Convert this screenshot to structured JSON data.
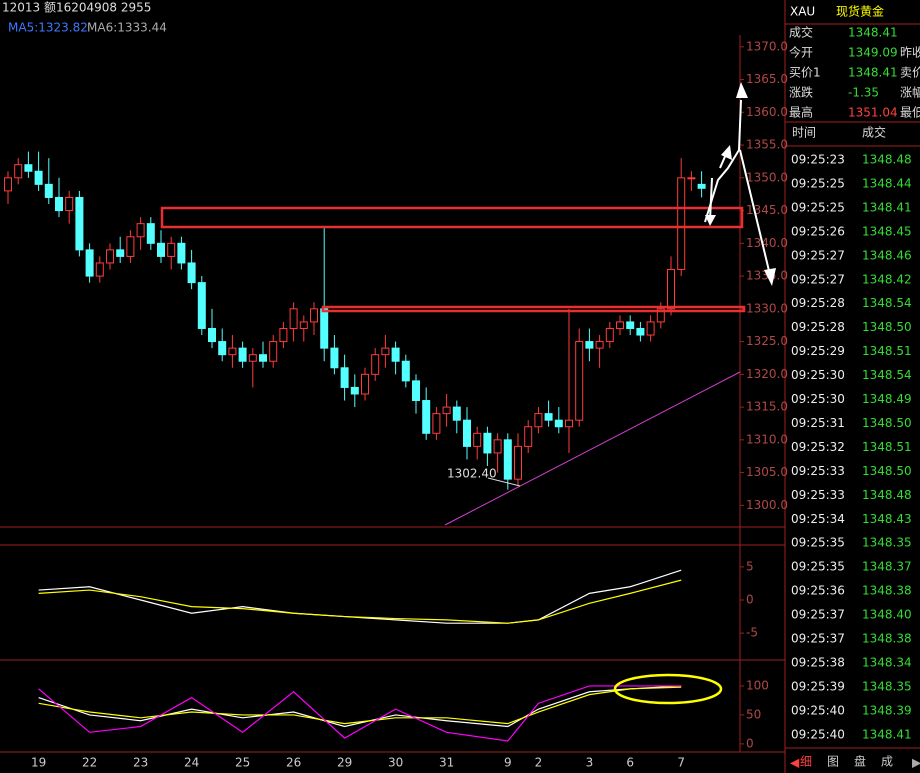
{
  "header": {
    "info": "12013 额16204908 2955",
    "ma5": "MA5:1323.82",
    "ma6": "MA6:1333.44"
  },
  "chart_data": [
    {
      "type": "candlestick",
      "up_color": "#ff3c3c",
      "down_color": "#54ffff",
      "categories": [
        null,
        null,
        null,
        "19",
        null,
        null,
        null,
        null,
        "22",
        null,
        null,
        null,
        null,
        "23",
        null,
        null,
        null,
        null,
        "24",
        null,
        null,
        null,
        null,
        "25",
        null,
        null,
        null,
        null,
        "26",
        null,
        null,
        null,
        null,
        "29",
        null,
        null,
        null,
        null,
        "30",
        null,
        null,
        null,
        null,
        "31",
        null,
        null,
        null,
        null,
        null,
        "9",
        null,
        null,
        "2",
        null,
        null,
        null,
        null,
        "3",
        null,
        null,
        null,
        "6",
        null,
        null,
        null,
        null,
        "7",
        null,
        null
      ],
      "values": [
        [
          1348,
          1351,
          1346,
          1350
        ],
        [
          1350,
          1353,
          1349,
          1352
        ],
        [
          1352,
          1354,
          1350,
          1351
        ],
        [
          1351,
          1354,
          1348,
          1349
        ],
        [
          1349,
          1353,
          1346,
          1347
        ],
        [
          1347,
          1350,
          1344,
          1345
        ],
        [
          1345,
          1348,
          1343,
          1347
        ],
        [
          1347,
          1348,
          1338,
          1339
        ],
        [
          1339,
          1340,
          1334,
          1335
        ],
        [
          1335,
          1338,
          1334,
          1337
        ],
        [
          1337,
          1340,
          1336,
          1339
        ],
        [
          1339,
          1341,
          1337,
          1338
        ],
        [
          1338,
          1342,
          1337,
          1341
        ],
        [
          1341,
          1344,
          1339,
          1343
        ],
        [
          1343,
          1344,
          1339,
          1340
        ],
        [
          1340,
          1342,
          1337,
          1338
        ],
        [
          1338,
          1341,
          1336,
          1340
        ],
        [
          1340,
          1341,
          1336,
          1337
        ],
        [
          1337,
          1339,
          1333,
          1334
        ],
        [
          1334,
          1335,
          1326,
          1327
        ],
        [
          1327,
          1330,
          1324,
          1325
        ],
        [
          1325,
          1327,
          1322,
          1323
        ],
        [
          1323,
          1326,
          1321,
          1324
        ],
        [
          1324,
          1325,
          1321,
          1322
        ],
        [
          1322,
          1324,
          1318,
          1323
        ],
        [
          1323,
          1325,
          1321,
          1322
        ],
        [
          1322,
          1326,
          1321,
          1325
        ],
        [
          1325,
          1328,
          1324,
          1327
        ],
        [
          1327,
          1331,
          1325,
          1330
        ],
        [
          1327,
          1329,
          1325,
          1328
        ],
        [
          1328,
          1331,
          1326,
          1330
        ],
        [
          1330,
          1342.3,
          1322,
          1324
        ],
        [
          1324,
          1326,
          1320,
          1321
        ],
        [
          1321,
          1323,
          1316,
          1318
        ],
        [
          1318,
          1320,
          1315,
          1317
        ],
        [
          1317,
          1321,
          1316,
          1320
        ],
        [
          1320,
          1324,
          1319,
          1323
        ],
        [
          1323,
          1326,
          1321,
          1324
        ],
        [
          1324,
          1325,
          1320,
          1322
        ],
        [
          1322,
          1323,
          1318,
          1319
        ],
        [
          1319,
          1320,
          1314,
          1316
        ],
        [
          1316,
          1318,
          1310,
          1311
        ],
        [
          1311,
          1315,
          1310,
          1314
        ],
        [
          1314,
          1317,
          1312,
          1315
        ],
        [
          1315,
          1316,
          1311,
          1313
        ],
        [
          1313,
          1315,
          1307,
          1309
        ],
        [
          1309,
          1312,
          1307,
          1311
        ],
        [
          1311,
          1312,
          1306,
          1308
        ],
        [
          1308,
          1311,
          1305,
          1310
        ],
        [
          1310,
          1311,
          1302.4,
          1304
        ],
        [
          1304,
          1311,
          1303,
          1309
        ],
        [
          1309,
          1313,
          1308,
          1312
        ],
        [
          1312,
          1315,
          1311,
          1314
        ],
        [
          1314,
          1316,
          1312,
          1313
        ],
        [
          1313,
          1315,
          1311,
          1312
        ],
        [
          1312,
          1330,
          1308,
          1313
        ],
        [
          1313,
          1327,
          1312,
          1325
        ],
        [
          1325,
          1327,
          1322,
          1324
        ],
        [
          1324,
          1326,
          1321,
          1325
        ],
        [
          1325,
          1328,
          1324,
          1327
        ],
        [
          1327,
          1329,
          1326,
          1328
        ],
        [
          1328,
          1329,
          1326,
          1327
        ],
        [
          1327,
          1328,
          1325,
          1326
        ],
        [
          1326,
          1329,
          1325,
          1328
        ],
        [
          1328,
          1331,
          1327,
          1330
        ],
        [
          1330,
          1338,
          1329,
          1336
        ],
        [
          1336,
          1353,
          1335,
          1350
        ],
        [
          1350,
          1351,
          1348,
          1350
        ],
        [
          1349,
          1351,
          1347,
          1348.4
        ]
      ],
      "annotations": [
        {
          "text": "1302.40"
        }
      ],
      "ylim": [
        1297,
        1371.8
      ],
      "yticks": [
        {
          "value": 1370,
          "label": "1370.0"
        },
        {
          "value": 1365,
          "label": "1365.0"
        },
        {
          "value": 1360,
          "label": "1360.0"
        },
        {
          "value": 1355,
          "label": "1355.0"
        },
        {
          "value": 1350,
          "label": "1350.0"
        },
        {
          "value": 1345,
          "label": "1345.0"
        },
        {
          "value": 1340,
          "label": "1340.0"
        },
        {
          "value": 1335,
          "label": "1335.0"
        },
        {
          "value": 1330,
          "label": "1330.0"
        },
        {
          "value": 1325,
          "label": "1325.0"
        },
        {
          "value": 1320,
          "label": "1320.0"
        },
        {
          "value": 1315,
          "label": "1315.0"
        },
        {
          "value": 1310,
          "label": "1310.0"
        },
        {
          "value": 1305,
          "label": "1305.0"
        },
        {
          "value": 1300,
          "label": "1300.0"
        }
      ]
    },
    {
      "type": "line",
      "ylim": [
        -8.3,
        8
      ],
      "yticks": [
        5,
        0,
        -5
      ],
      "series": [
        {
          "color": "#ffffff",
          "values": [
            1.5,
            2,
            0,
            -2,
            -1,
            -2,
            -2.5,
            -3,
            -3.5,
            -3.5,
            -3,
            1,
            2,
            4.5
          ]
        },
        {
          "color": "#ffff00",
          "values": [
            1,
            1.5,
            0.5,
            -1,
            -1.3,
            -2,
            -2.5,
            -2.8,
            -3,
            -3.5,
            -3,
            -0.5,
            1,
            3
          ]
        }
      ]
    },
    {
      "type": "line",
      "ylim": [
        -14,
        131
      ],
      "yticks": [
        100,
        50,
        0
      ],
      "series": [
        {
          "color": "#ffffff",
          "values": [
            80,
            50,
            40,
            60,
            45,
            55,
            30,
            50,
            40,
            30,
            60,
            90,
            95,
            100
          ]
        },
        {
          "color": "#ffff00",
          "values": [
            70,
            55,
            45,
            55,
            50,
            50,
            35,
            45,
            45,
            35,
            55,
            85,
            95,
            98
          ]
        },
        {
          "color": "#ff00ff",
          "values": [
            95,
            20,
            30,
            80,
            20,
            90,
            10,
            60,
            20,
            5,
            70,
            100,
            100,
            100
          ]
        }
      ]
    }
  ],
  "quote": {
    "symbol": "XAU",
    "name": "现货黄金",
    "rows": [
      [
        "成交",
        "1348.41"
      ],
      [
        "今开",
        "1349.09",
        "昨收"
      ],
      [
        "买价1",
        "1348.41",
        "卖价"
      ],
      [
        "涨跌",
        "-1.35",
        "涨幅"
      ],
      [
        "最高",
        "1351.04",
        "最低"
      ]
    ]
  },
  "ticks": {
    "header": [
      "时间",
      "成交"
    ],
    "rows": [
      [
        "09:25:23",
        "1348.48"
      ],
      [
        "09:25:25",
        "1348.44"
      ],
      [
        "09:25:25",
        "1348.41"
      ],
      [
        "09:25:26",
        "1348.45"
      ],
      [
        "09:25:27",
        "1348.46"
      ],
      [
        "09:25:27",
        "1348.42"
      ],
      [
        "09:25:28",
        "1348.54"
      ],
      [
        "09:25:28",
        "1348.50"
      ],
      [
        "09:25:29",
        "1348.51"
      ],
      [
        "09:25:30",
        "1348.54"
      ],
      [
        "09:25:30",
        "1348.49"
      ],
      [
        "09:25:31",
        "1348.50"
      ],
      [
        "09:25:32",
        "1348.51"
      ],
      [
        "09:25:33",
        "1348.50"
      ],
      [
        "09:25:33",
        "1348.48"
      ],
      [
        "09:25:34",
        "1348.43"
      ],
      [
        "09:25:35",
        "1348.35"
      ],
      [
        "09:25:35",
        "1348.37"
      ],
      [
        "09:25:36",
        "1348.38"
      ],
      [
        "09:25:37",
        "1348.40"
      ],
      [
        "09:25:37",
        "1348.38"
      ],
      [
        "09:25:38",
        "1348.34"
      ],
      [
        "09:25:39",
        "1348.35"
      ],
      [
        "09:25:40",
        "1348.39"
      ],
      [
        "09:25:40",
        "1348.41"
      ]
    ]
  },
  "tabs": [
    "细",
    "图",
    "盘",
    "成"
  ]
}
